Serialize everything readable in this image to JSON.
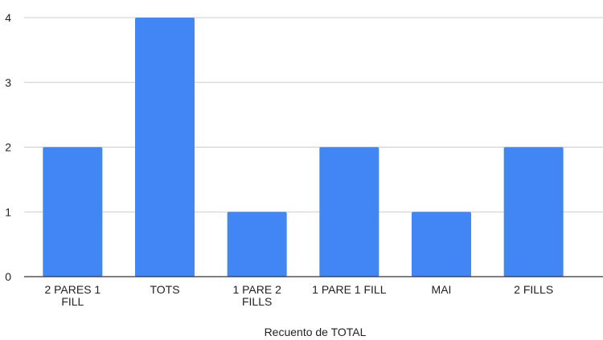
{
  "chart_data": {
    "type": "bar",
    "categories": [
      "2 PARES 1 FILL",
      "TOTS",
      "1 PARE 2 FILLS",
      "1 PARE 1 FILL",
      "MAI",
      "2 FILLS"
    ],
    "category_lines": [
      [
        "2 PARES 1",
        "FILL"
      ],
      [
        "TOTS"
      ],
      [
        "1 PARE 2",
        "FILLS"
      ],
      [
        "1 PARE 1 FILL"
      ],
      [
        "MAI"
      ],
      [
        "2 FILLS"
      ]
    ],
    "values": [
      2,
      4,
      1,
      2,
      1,
      2
    ],
    "yticks": [
      0,
      1,
      2,
      3,
      4
    ],
    "ylim": [
      0,
      4
    ],
    "xlabel": "Recuento de TOTAL",
    "ylabel": "",
    "grid": true,
    "bar_color": "#4285f4",
    "grid_color": "#cccccc",
    "axis_color": "#333333"
  }
}
